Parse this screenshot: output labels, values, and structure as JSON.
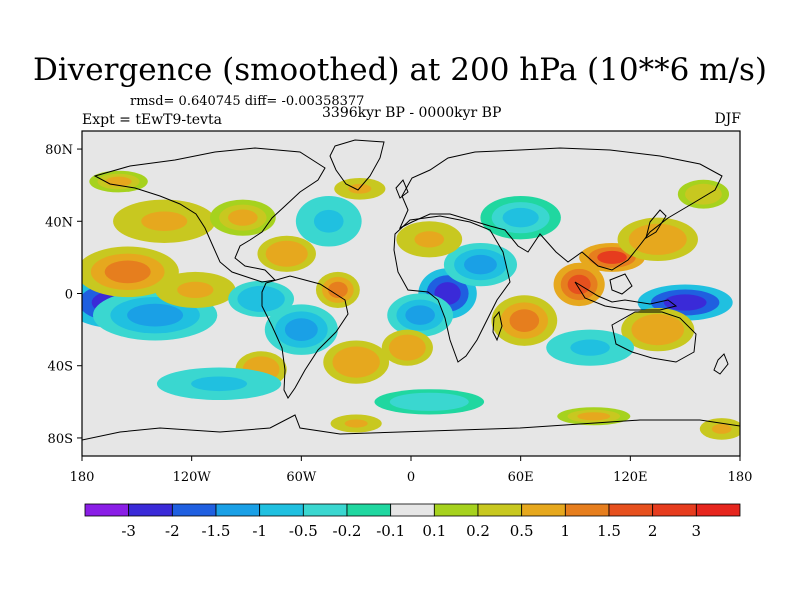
{
  "chart_data": {
    "type": "heatmap",
    "title": "Divergence (smoothed) at 200 hPa (10**6 m/s)",
    "stats_label": "rmsd= 0.640745 diff= -0.00358377",
    "period_label": "3396kyr BP - 0000kyr BP",
    "experiment_label": "Expt = tEwT9-tevta",
    "season_label": "DJF",
    "xlim": [
      -180,
      180
    ],
    "ylim": [
      -90,
      90
    ],
    "x_tick_labels": [
      {
        "value": -180,
        "label": "180"
      },
      {
        "value": -120,
        "label": "120W"
      },
      {
        "value": -60,
        "label": "60W"
      },
      {
        "value": 0,
        "label": "0"
      },
      {
        "value": 60,
        "label": "60E"
      },
      {
        "value": 120,
        "label": "120E"
      },
      {
        "value": 180,
        "label": "180"
      }
    ],
    "y_tick_labels": [
      {
        "value": 80,
        "label": "80N"
      },
      {
        "value": 40,
        "label": "40N"
      },
      {
        "value": 0,
        "label": "0"
      },
      {
        "value": -40,
        "label": "40S"
      },
      {
        "value": -80,
        "label": "80S"
      }
    ],
    "colorbar": {
      "levels": [
        "-3",
        "-2",
        "-1.5",
        "-1",
        "-0.5",
        "-0.2",
        "-0.1",
        "0.1",
        "0.2",
        "0.5",
        "1",
        "1.5",
        "2",
        "3"
      ],
      "colors": [
        "#8a1ee6",
        "#3a2ad8",
        "#1f5fe0",
        "#1aa0e6",
        "#20c0e0",
        "#3ad7d0",
        "#20d7a0",
        "#e6e6e6",
        "#a6d21e",
        "#c8c820",
        "#e6a81e",
        "#e67e1e",
        "#e6501e",
        "#e63c1e",
        "#e6261e"
      ]
    },
    "anomalies": [
      {
        "lon": -163,
        "lat": -5,
        "value": -2.8,
        "rlon": 26,
        "rlat": 14
      },
      {
        "lon": -140,
        "lat": -12,
        "value": -1.0,
        "rlon": 34,
        "rlat": 14
      },
      {
        "lon": -155,
        "lat": 12,
        "value": 1.4,
        "rlon": 28,
        "rlat": 14
      },
      {
        "lon": -118,
        "lat": 2,
        "value": 0.6,
        "rlon": 22,
        "rlat": 10
      },
      {
        "lon": -135,
        "lat": 40,
        "value": 0.6,
        "rlon": 28,
        "rlat": 12
      },
      {
        "lon": -160,
        "lat": 62,
        "value": 0.5,
        "rlon": 16,
        "rlat": 6
      },
      {
        "lon": -60,
        "lat": -20,
        "value": -1.2,
        "rlon": 20,
        "rlat": 14
      },
      {
        "lon": -82,
        "lat": -3,
        "value": -0.8,
        "rlon": 18,
        "rlat": 10
      },
      {
        "lon": -68,
        "lat": 22,
        "value": 0.8,
        "rlon": 16,
        "rlat": 10
      },
      {
        "lon": -40,
        "lat": 2,
        "value": 1.2,
        "rlon": 12,
        "rlat": 10
      },
      {
        "lon": -30,
        "lat": -38,
        "value": 0.8,
        "rlon": 18,
        "rlat": 12
      },
      {
        "lon": -82,
        "lat": -42,
        "value": 0.9,
        "rlon": 14,
        "rlat": 10
      },
      {
        "lon": -105,
        "lat": -50,
        "value": -0.7,
        "rlon": 34,
        "rlat": 9
      },
      {
        "lon": -45,
        "lat": 40,
        "value": -0.6,
        "rlon": 18,
        "rlat": 14
      },
      {
        "lon": -92,
        "lat": 42,
        "value": 0.5,
        "rlon": 18,
        "rlat": 10
      },
      {
        "lon": -28,
        "lat": 58,
        "value": 0.6,
        "rlon": 14,
        "rlat": 6
      },
      {
        "lon": 20,
        "lat": 0,
        "value": -2.6,
        "rlon": 16,
        "rlat": 14
      },
      {
        "lon": 5,
        "lat": -12,
        "value": -1.0,
        "rlon": 18,
        "rlat": 12
      },
      {
        "lon": 38,
        "lat": 16,
        "value": -1.2,
        "rlon": 20,
        "rlat": 12
      },
      {
        "lon": 10,
        "lat": 30,
        "value": 0.6,
        "rlon": 18,
        "rlat": 10
      },
      {
        "lon": -2,
        "lat": -30,
        "value": 0.8,
        "rlon": 14,
        "rlat": 10
      },
      {
        "lon": 62,
        "lat": -15,
        "value": 1.1,
        "rlon": 18,
        "rlat": 14
      },
      {
        "lon": 92,
        "lat": 5,
        "value": 1.5,
        "rlon": 14,
        "rlat": 12
      },
      {
        "lon": 110,
        "lat": 20,
        "value": 2.1,
        "rlon": 18,
        "rlat": 8
      },
      {
        "lon": 150,
        "lat": -5,
        "value": -2.7,
        "rlon": 26,
        "rlat": 10
      },
      {
        "lon": 135,
        "lat": 30,
        "value": 0.9,
        "rlon": 22,
        "rlat": 12
      },
      {
        "lon": 135,
        "lat": -20,
        "value": 0.9,
        "rlon": 20,
        "rlat": 12
      },
      {
        "lon": 98,
        "lat": -30,
        "value": -0.7,
        "rlon": 24,
        "rlat": 10
      },
      {
        "lon": 60,
        "lat": 42,
        "value": -0.5,
        "rlon": 22,
        "rlat": 12
      },
      {
        "lon": 160,
        "lat": 55,
        "value": 0.4,
        "rlon": 14,
        "rlat": 8
      },
      {
        "lon": -30,
        "lat": -72,
        "value": 0.6,
        "rlon": 14,
        "rlat": 5
      },
      {
        "lon": 100,
        "lat": -68,
        "value": 0.5,
        "rlon": 20,
        "rlat": 5
      },
      {
        "lon": 170,
        "lat": -75,
        "value": 0.6,
        "rlon": 12,
        "rlat": 6
      },
      {
        "lon": 10,
        "lat": -60,
        "value": -0.4,
        "rlon": 30,
        "rlat": 7
      }
    ]
  }
}
